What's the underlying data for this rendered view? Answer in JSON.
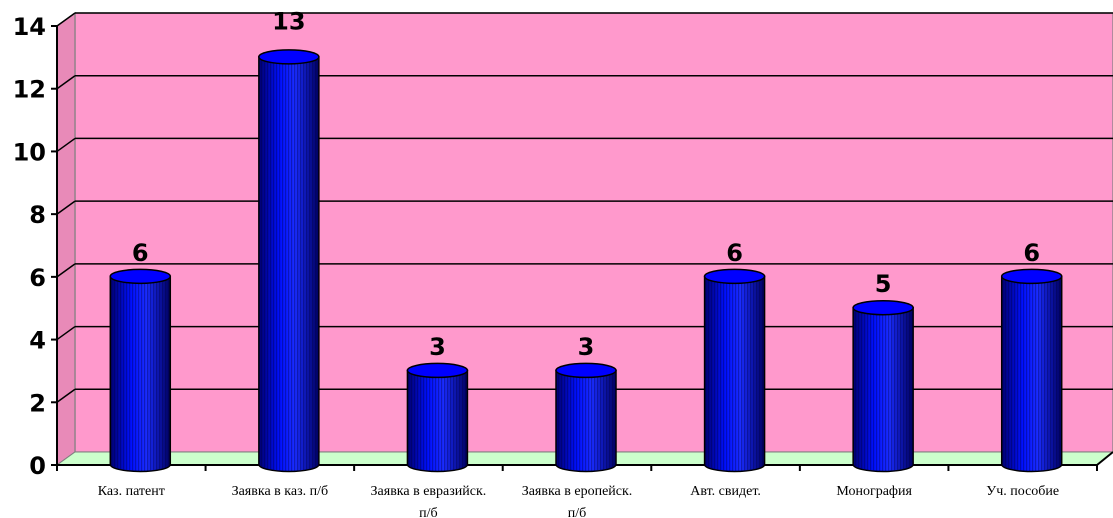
{
  "chart_data": {
    "type": "bar",
    "categories": [
      [
        "Каз. патент"
      ],
      [
        "Заявка в каз. п/б"
      ],
      [
        "Заявка в евразийск.",
        "п/б"
      ],
      [
        "Заявка в еропейск.",
        "п/б"
      ],
      [
        "Авт. свидет."
      ],
      [
        "Монография"
      ],
      [
        "Уч. пособие"
      ]
    ],
    "values": [
      6,
      13,
      3,
      3,
      6,
      5,
      6
    ],
    "data_labels": [
      "6",
      "13",
      "3",
      "3",
      "6",
      "5",
      "6"
    ],
    "ylim": [
      0,
      14
    ],
    "yticks": [
      0,
      2,
      4,
      6,
      8,
      10,
      12,
      14
    ],
    "ytick_labels": [
      "0",
      "2",
      "4",
      "6",
      "8",
      "10",
      "12",
      "14"
    ],
    "grid": true,
    "style": "3d-cylinder",
    "colors": {
      "wall": "#ff99cc",
      "floor": "#ccffcc",
      "bar": "#0000ff",
      "bar_dark": "#000080",
      "grid": "#000000"
    }
  }
}
